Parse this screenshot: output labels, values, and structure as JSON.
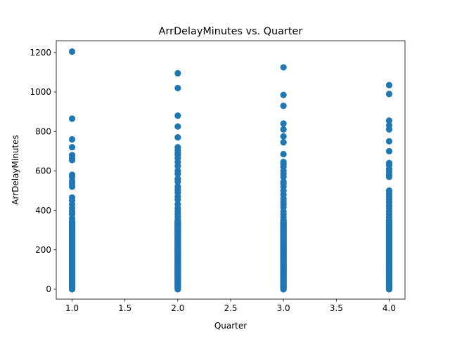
{
  "chart_data": {
    "type": "scatter",
    "title": "ArrDelayMinutes vs. Quarter",
    "xlabel": "Quarter",
    "ylabel": "ArrDelayMinutes",
    "xlim": [
      0.85,
      4.15
    ],
    "ylim": [
      -50,
      1260
    ],
    "xticks": [
      1.0,
      1.5,
      2.0,
      2.5,
      3.0,
      3.5,
      4.0
    ],
    "xtick_labels": [
      "1.0",
      "1.5",
      "2.0",
      "2.5",
      "3.0",
      "3.5",
      "4.0"
    ],
    "yticks": [
      0,
      200,
      400,
      600,
      800,
      1000,
      1200
    ],
    "ytick_labels": [
      "0",
      "200",
      "400",
      "600",
      "800",
      "1000",
      "1200"
    ],
    "grid": false,
    "color": "#1f77b4",
    "series": [
      {
        "x": 1,
        "y": [
          1205,
          865,
          760,
          720,
          680,
          665,
          655,
          580,
          570,
          550,
          535,
          520,
          465,
          450,
          430,
          410,
          395,
          380,
          360,
          345
        ]
      },
      {
        "x": 2,
        "y": [
          1095,
          1020,
          880,
          825,
          770,
          720,
          705,
          690,
          680,
          665,
          645,
          625,
          600,
          585,
          560,
          545,
          520,
          505,
          490,
          470,
          455,
          430,
          410,
          395,
          380,
          365,
          350
        ]
      },
      {
        "x": 3,
        "y": [
          1125,
          985,
          930,
          840,
          810,
          775,
          745,
          685,
          645,
          635,
          620,
          600,
          585,
          570,
          545,
          535,
          520,
          500,
          480,
          460,
          445,
          430,
          415,
          395,
          380,
          365,
          350
        ]
      },
      {
        "x": 4,
        "y": [
          1035,
          990,
          855,
          830,
          810,
          750,
          700,
          640,
          630,
          610,
          595,
          580,
          570,
          500,
          485,
          470,
          455,
          440,
          425,
          410,
          395,
          380,
          365,
          350
        ]
      }
    ],
    "dense_range": [
      0,
      345
    ]
  }
}
